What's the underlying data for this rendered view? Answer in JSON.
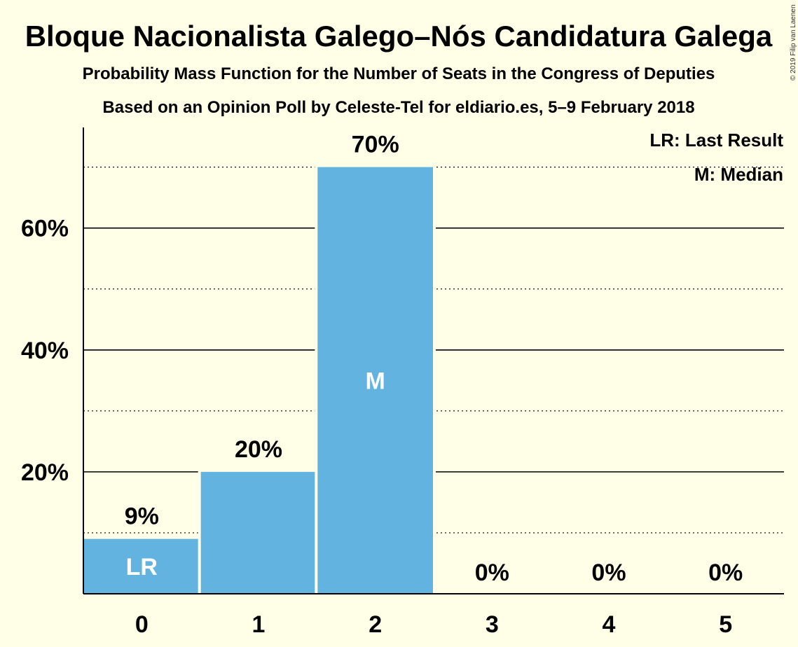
{
  "title": "Bloque Nacionalista Galego–Nós Candidatura Galega",
  "subtitle1": "Probability Mass Function for the Number of Seats in the Congress of Deputies",
  "subtitle2": "Based on an Opinion Poll by Celeste-Tel for eldiario.es, 5–9 February 2018",
  "copyright": "© 2019 Filip van Laenen",
  "legend": {
    "last_result": "LR: Last Result",
    "median": "M: Median"
  },
  "chart_data": {
    "type": "bar",
    "categories": [
      "0",
      "1",
      "2",
      "3",
      "4",
      "5"
    ],
    "values": [
      9,
      20,
      70,
      0,
      0,
      0
    ],
    "value_labels": [
      "9%",
      "20%",
      "70%",
      "0%",
      "0%",
      "0%"
    ],
    "bar_markers": [
      "LR",
      "",
      "M",
      "",
      "",
      ""
    ],
    "ylim": [
      0,
      76.5
    ],
    "yticks": [
      20,
      40,
      60
    ],
    "ytick_labels": [
      "20%",
      "40%",
      "60%"
    ],
    "minor_gridlines": [
      10,
      30,
      50,
      70
    ],
    "bar_color": "#62B3DF",
    "grid": true,
    "legend_position": "top-right"
  }
}
